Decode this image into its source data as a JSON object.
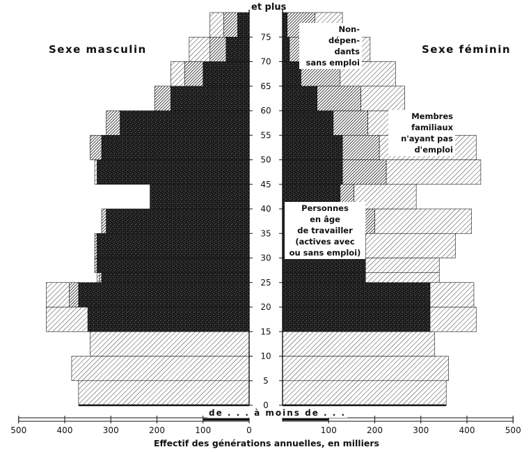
{
  "chart_data": {
    "type": "population-pyramid",
    "top_label": "et plus",
    "bottom_label": "de . . . à moins de . . .",
    "left_title": "Sexe masculin",
    "right_title": "Sexe féminin",
    "xlabel": "Effectif des générations annuelles, en milliers",
    "x_ticks": [
      500,
      400,
      300,
      200,
      100,
      0,
      100,
      200,
      300,
      400,
      500
    ],
    "xlim": [
      0,
      500
    ],
    "y_ticks": [
      0,
      5,
      10,
      15,
      20,
      25,
      30,
      35,
      40,
      45,
      50,
      55,
      60,
      65,
      70,
      75
    ],
    "ylim": [
      0,
      80
    ],
    "age_groups": [
      {
        "from": 0,
        "to": 5
      },
      {
        "from": 5,
        "to": 10
      },
      {
        "from": 10,
        "to": 15
      },
      {
        "from": 15,
        "to": 20
      },
      {
        "from": 20,
        "to": 25
      },
      {
        "from": 25,
        "to": 27
      },
      {
        "from": 27,
        "to": 30
      },
      {
        "from": 30,
        "to": 35
      },
      {
        "from": 35,
        "to": 40
      },
      {
        "from": 40,
        "to": 45
      },
      {
        "from": 45,
        "to": 50
      },
      {
        "from": 50,
        "to": 55
      },
      {
        "from": 55,
        "to": 60
      },
      {
        "from": 60,
        "to": 65
      },
      {
        "from": 65,
        "to": 70
      },
      {
        "from": 70,
        "to": 75
      },
      {
        "from": 75,
        "to": 80
      }
    ],
    "series": [
      {
        "key": "working",
        "name": "Personnes en âge de travailler (actives avec ou sans emploi)",
        "pattern": "dark-stipple"
      },
      {
        "key": "nondep",
        "name": "Non-dépendants sans emploi",
        "pattern": "dense-hatch"
      },
      {
        "key": "family",
        "name": "Membres familiaux n'ayant pas d'emploi",
        "pattern": "light-hatch"
      }
    ],
    "male": {
      "working": [
        0,
        0,
        0,
        350,
        370,
        320,
        330,
        330,
        310,
        215,
        330,
        320,
        280,
        170,
        100,
        50,
        25
      ],
      "nondep": [
        0,
        0,
        0,
        0,
        20,
        5,
        5,
        5,
        10,
        0,
        0,
        25,
        30,
        35,
        40,
        35,
        30
      ],
      "family": [
        370,
        385,
        345,
        90,
        50,
        5,
        0,
        0,
        0,
        0,
        5,
        0,
        0,
        0,
        30,
        45,
        30
      ]
    },
    "female": {
      "working": [
        0,
        0,
        0,
        320,
        320,
        180,
        180,
        170,
        160,
        125,
        130,
        130,
        110,
        75,
        40,
        15,
        10
      ],
      "nondep": [
        0,
        0,
        0,
        0,
        0,
        0,
        0,
        10,
        40,
        30,
        95,
        80,
        75,
        95,
        85,
        75,
        60
      ],
      "family": [
        355,
        360,
        330,
        100,
        95,
        160,
        160,
        195,
        210,
        135,
        205,
        210,
        175,
        95,
        120,
        100,
        60
      ]
    },
    "annotations": [
      "Non-\ndépen-\ndants\nsans emploi",
      "Membres\nfamiliaux\nn'ayant pas\nd'emploi",
      "Personnes\nen âge\nde travailler\n(actives avec\nou sans emploi)"
    ],
    "grid": false,
    "legend": "inline labels"
  }
}
